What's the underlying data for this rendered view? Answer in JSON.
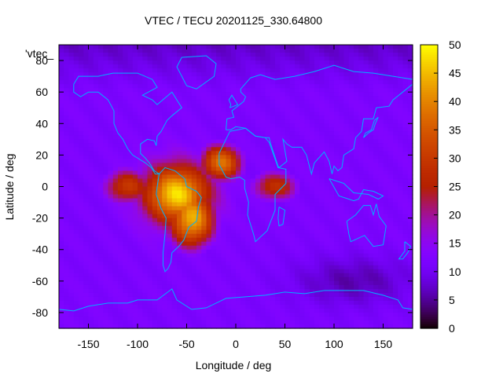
{
  "chart_data": {
    "type": "heatmap",
    "title": "VTEC / TECU 20201125_330.64800",
    "key_label": "'vtec_",
    "xlabel": "Longitude / deg",
    "ylabel": "Latitude / deg",
    "xlim": [
      -180,
      180
    ],
    "ylim": [
      -90,
      90
    ],
    "x_ticks": [
      -150,
      -100,
      -50,
      0,
      50,
      100,
      150
    ],
    "y_ticks": [
      -80,
      -60,
      -40,
      -20,
      0,
      20,
      40,
      60,
      80
    ],
    "x_tick_labels": [
      "-150",
      "-100",
      "-50",
      "0",
      "50",
      "100",
      "150"
    ],
    "y_tick_labels": [
      "-80",
      "-60",
      "-40",
      "-20",
      "0",
      "20",
      "40",
      "60",
      "80"
    ],
    "colorbar": {
      "range": [
        0,
        50
      ],
      "ticks": [
        0,
        5,
        10,
        15,
        20,
        25,
        30,
        35,
        40,
        45,
        50
      ],
      "tick_labels": [
        "0",
        "5",
        "10",
        "15",
        "20",
        "25",
        "30",
        "35",
        "40",
        "45",
        "50"
      ],
      "palette": "gnuplot black-blue-purple-red-orange-yellow"
    },
    "grid_resolution_deg": {
      "lon": 5,
      "lat": 2.5
    },
    "features": [
      {
        "name": "equatorial-anomaly-peak",
        "lon": -60,
        "lat": -5,
        "value": 48
      },
      {
        "name": "south-america-crest",
        "lon": -45,
        "lat": -20,
        "value": 44
      },
      {
        "name": "atlantic-crest",
        "lon": -15,
        "lat": 15,
        "value": 38
      },
      {
        "name": "east-pacific-tongue",
        "lon": -110,
        "lat": 0,
        "value": 30
      },
      {
        "name": "africa-indian-ocean-band",
        "lon": 40,
        "lat": 0,
        "value": 28
      },
      {
        "name": "background",
        "value": 12
      },
      {
        "name": "arctic-low",
        "lat": 75,
        "value": 7
      },
      {
        "name": "southern-ocean-low",
        "lon": 120,
        "lat": -60,
        "value": 5
      }
    ],
    "overlay": "coastlines",
    "coastline_color": "#00b0ff"
  }
}
